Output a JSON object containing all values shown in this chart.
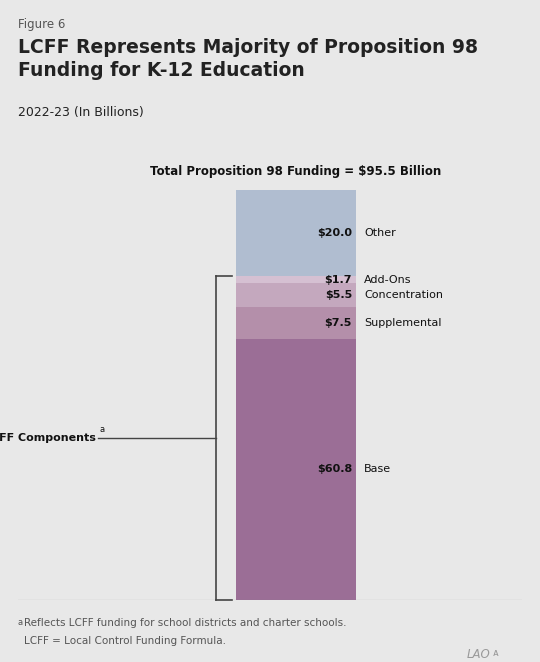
{
  "figure_label": "Figure 6",
  "title": "LCFF Represents Majority of Proposition 98\nFunding for K-12 Education",
  "subtitle": "2022-23 (In Billions)",
  "total_label": "Total Proposition 98 Funding = $95.5 Billion",
  "segments": [
    {
      "label": "Base",
      "value": 60.8,
      "color": "#9b6e96",
      "value_label": "$60.8"
    },
    {
      "label": "Supplemental",
      "value": 7.5,
      "color": "#b48faa",
      "value_label": "$7.5"
    },
    {
      "label": "Concentration",
      "value": 5.5,
      "color": "#c4a8be",
      "value_label": "$5.5"
    },
    {
      "label": "Add-Ons",
      "value": 1.7,
      "color": "#d5c0d2",
      "value_label": "$1.7"
    },
    {
      "label": "Other",
      "value": 20.0,
      "color": "#b0bdd0",
      "value_label": "$20.0"
    }
  ],
  "lcff_components_label": "LCFF Components",
  "footnote_a": "Reflects LCFF funding for school districts and charter schools.",
  "footnote_b": "LCFF = Local Control Funding Formula.",
  "background_color": "#e8e8e8",
  "text_color": "#222222",
  "muted_color": "#555555"
}
